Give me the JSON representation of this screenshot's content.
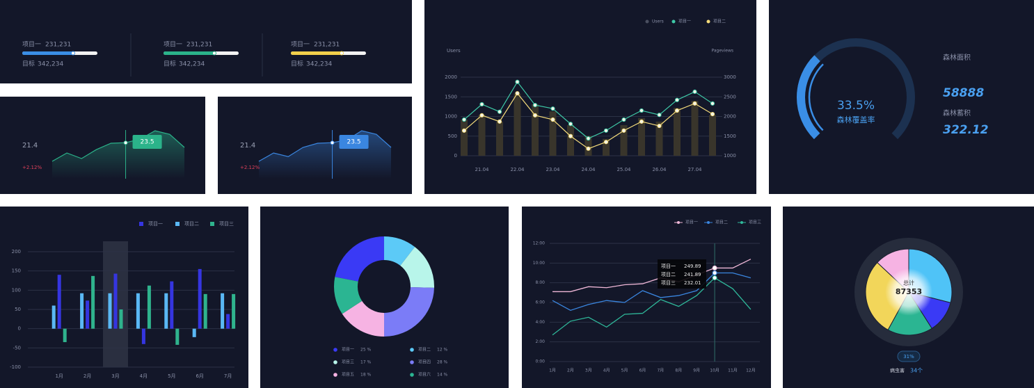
{
  "chart_data": [
    {
      "type": "progress",
      "items": [
        {
          "name": "项目一",
          "value": 231231,
          "value_label": "231,231",
          "target_name": "目标",
          "target": 342234,
          "target_label": "342,234",
          "color": "#3a8ee6"
        },
        {
          "name": "项目一",
          "value": 231231,
          "value_label": "231,231",
          "target_name": "目标",
          "target": 342234,
          "target_label": "342,234",
          "color": "#2bb38a"
        },
        {
          "name": "项目一",
          "value": 231231,
          "value_label": "231,231",
          "target_name": "目标",
          "target": 342234,
          "target_label": "342,234",
          "color": "#f2d04b"
        }
      ]
    },
    {
      "type": "area",
      "current": 21.4,
      "change": "+2.12%",
      "color": "#2bb38a",
      "values": [
        16.8,
        19.8,
        17.8,
        21.0,
        23.3,
        23.5,
        24.8,
        27.8,
        26.5,
        21.8
      ]
    },
    {
      "type": "area",
      "current": 21.4,
      "change": "+2.12%",
      "color": "#3a86e0",
      "values": [
        16.8,
        19.8,
        18.5,
        21.8,
        23.3,
        23.5,
        24.5,
        27.8,
        26.5,
        21.8
      ]
    },
    {
      "type": "combo",
      "y_label": "Users",
      "y2_label": "Pageviews",
      "categories": [
        null,
        "21.04",
        null,
        "22.04",
        null,
        "23.04",
        null,
        "24.04",
        null,
        "25.04",
        null,
        "26.04",
        null,
        "27.04",
        null
      ],
      "series": [
        {
          "name": "Users",
          "type": "bar",
          "color": "#39352b",
          "legend_color": "#4a4f60",
          "values": [
            920,
            1040,
            870,
            1580,
            1310,
            1130,
            780,
            510,
            430,
            780,
            960,
            870,
            1220,
            1400,
            1040
          ]
        },
        {
          "name": "项目一",
          "type": "line",
          "axis": "y2",
          "color": "#3ec9a7",
          "values": [
            1920,
            2310,
            2120,
            2880,
            2290,
            2200,
            1810,
            1440,
            1640,
            1920,
            2150,
            2040,
            2420,
            2630,
            2330
          ]
        },
        {
          "name": "项目二",
          "type": "line",
          "axis": "y2",
          "color": "#f5dc7a",
          "values": [
            1640,
            2030,
            1870,
            2590,
            2030,
            1920,
            1500,
            1180,
            1350,
            1640,
            1870,
            1760,
            2150,
            2330,
            2060
          ]
        }
      ],
      "ylim": [
        0,
        2000
      ],
      "yticks": [
        0,
        500,
        1000,
        1500,
        2000
      ],
      "y2lim": [
        1000,
        3000
      ],
      "y2ticks": [
        1000,
        1500,
        2000,
        2500,
        3000
      ],
      "grid": true
    },
    {
      "type": "gauge",
      "value": 33.5,
      "value_label": "33.5%",
      "label": "森林覆盖率",
      "color": "#3a8ee6",
      "stats": [
        {
          "name": "森林面积",
          "value": 58888
        },
        {
          "name": "森林蓄积",
          "value": 322.12
        }
      ]
    },
    {
      "type": "bar",
      "categories": [
        "1月",
        "2月",
        "3月",
        "4月",
        "5月",
        "6月",
        "7月"
      ],
      "series": [
        {
          "name": "项目一",
          "color": "#3535e0",
          "values": [
            140,
            73,
            143,
            -40,
            123,
            155,
            38
          ]
        },
        {
          "name": "项目二",
          "color": "#5ab8f5",
          "values": [
            60,
            92,
            92,
            92,
            92,
            -22,
            92
          ]
        },
        {
          "name": "项目三",
          "color": "#2fb38d",
          "values": [
            -35,
            137,
            50,
            112,
            -42,
            90,
            90
          ]
        }
      ],
      "ylim": [
        -100,
        200
      ],
      "yticks": [
        -100,
        -50,
        0,
        50,
        100,
        150,
        200
      ],
      "grid": true
    },
    {
      "type": "donut",
      "categories": [
        "项目一",
        "项目二",
        "项目三",
        "项目四",
        "项目五",
        "项目六"
      ],
      "values": [
        25,
        12,
        17,
        28,
        18,
        14
      ],
      "value_labels": [
        "25 %",
        "12 %",
        "17 %",
        "28 %",
        "18 %",
        "14 %"
      ],
      "colors": [
        "#3a3af5",
        "#5ccaf7",
        "#b8f5ea",
        "#7b7cf7",
        "#f6b3e3",
        "#2bb592"
      ]
    },
    {
      "type": "line",
      "categories": [
        "1月",
        "2月",
        "3月",
        "4月",
        "5月",
        "6月",
        "7月",
        "8月",
        "9月",
        "10月",
        "11月",
        "12月"
      ],
      "series": [
        {
          "name": "项目一",
          "color": "#f0b8d8",
          "tooltip": 249.89,
          "values": [
            7.1,
            7.1,
            7.6,
            7.5,
            7.8,
            7.9,
            8.5,
            8.1,
            8.8,
            9.5,
            9.5,
            10.4
          ]
        },
        {
          "name": "项目二",
          "color": "#3a86e0",
          "tooltip": 241.89,
          "values": [
            6.2,
            5.2,
            5.8,
            6.2,
            6.0,
            7.2,
            6.5,
            6.7,
            7.2,
            9.0,
            9.0,
            8.5
          ]
        },
        {
          "name": "项目三",
          "color": "#2fb89a",
          "tooltip": 232.01,
          "values": [
            2.7,
            4.1,
            4.5,
            3.5,
            4.8,
            4.9,
            6.3,
            5.6,
            6.7,
            8.5,
            7.4,
            5.3
          ]
        }
      ],
      "ylim": [
        0,
        12
      ],
      "yticks": [
        {
          "value": 0,
          "label": "0:00"
        },
        {
          "value": 2,
          "label": "2:00"
        },
        {
          "value": 4,
          "label": "4:00"
        },
        {
          "value": 6,
          "label": "6:00"
        },
        {
          "value": 8,
          "label": "8:00"
        },
        {
          "value": 10,
          "label": "10:00"
        },
        {
          "value": 12,
          "label": "12:00"
        }
      ],
      "grid": true
    },
    {
      "type": "pie",
      "center_label": "总计",
      "total": 87353,
      "badge": "31%",
      "footer_label": "病虫害",
      "footer_value": "34个",
      "values": [
        29,
        12,
        17,
        29,
        13
      ],
      "colors": [
        "#4fc3f7",
        "#3a3af5",
        "#2bb592",
        "#f2d65a",
        "#f6b3e3"
      ]
    }
  ]
}
